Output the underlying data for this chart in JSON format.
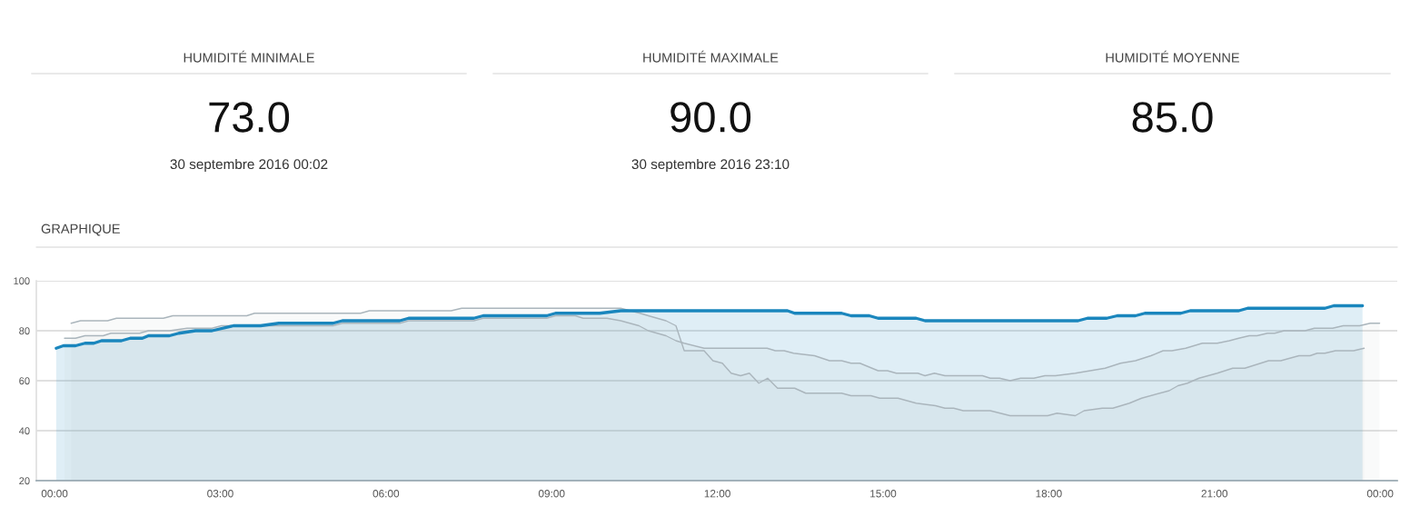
{
  "chart_data": [
    {
      "type": "other",
      "title": "HUMIDITÉ MINIMALE",
      "annotations": [
        "73.0",
        "30 septembre 2016 00:02"
      ]
    },
    {
      "type": "other",
      "title": "HUMIDITÉ MAXIMALE",
      "annotations": [
        "90.0",
        "30 septembre 2016 23:10"
      ]
    },
    {
      "type": "other",
      "title": "HUMIDITÉ MOYENNE",
      "annotations": [
        "85.0"
      ]
    },
    {
      "type": "area",
      "title": "GRAPHIQUE",
      "xlim": [
        -0.33,
        24.31
      ],
      "xticks": [
        {
          "value": 0,
          "label": "00:00"
        },
        {
          "value": 3,
          "label": "03:00"
        },
        {
          "value": 6,
          "label": "06:00"
        },
        {
          "value": 9,
          "label": "09:00"
        },
        {
          "value": 12,
          "label": "12:00"
        },
        {
          "value": 15,
          "label": "15:00"
        },
        {
          "value": 18,
          "label": "18:00"
        },
        {
          "value": 21,
          "label": "21:00"
        },
        {
          "value": 24,
          "label": "00:00"
        }
      ],
      "ylim": [
        20,
        100
      ],
      "yticks": [
        20,
        40,
        60,
        80,
        100
      ],
      "grid": "y",
      "series": [
        {
          "color": "#1a86bd",
          "x": [
            0.03,
            0.16,
            0.38,
            0.55,
            0.71,
            0.85,
            1.21,
            1.37,
            1.59,
            1.7,
            2.08,
            2.25,
            2.55,
            2.85,
            3.24,
            3.73,
            4.06,
            5.04,
            5.21,
            6.25,
            6.41,
            7.59,
            7.76,
            8.91,
            9.07,
            9.87,
            10.25,
            13.27,
            13.4,
            14.25,
            14.42,
            14.75,
            14.91,
            15.6,
            15.76,
            18.53,
            18.7,
            19.05,
            19.24,
            19.57,
            19.74,
            20.39,
            20.56,
            21.44,
            21.6,
            23.0,
            23.16,
            23.68
          ],
          "values": [
            73,
            74,
            74,
            75,
            75,
            76,
            76,
            77,
            77,
            78,
            78,
            79,
            80,
            80,
            82,
            82,
            83,
            83,
            84,
            84,
            85,
            85,
            86,
            86,
            87,
            87,
            88,
            88,
            87,
            87,
            86,
            86,
            85,
            85,
            84,
            84,
            85,
            85,
            86,
            86,
            87,
            87,
            88,
            88,
            89,
            89,
            90,
            90
          ]
        },
        {
          "color": "#aab5bc",
          "x": [
            0.3,
            0.47,
            0.96,
            1.12,
            1.97,
            2.14,
            3.48,
            3.62,
            5.54,
            5.7,
            7.18,
            7.37,
            10.25,
            10.6,
            10.75,
            11.07,
            11.25,
            11.4,
            11.76,
            11.92,
            12.09,
            12.25,
            12.42,
            12.58,
            12.75,
            12.91,
            13.09,
            13.4,
            13.6,
            14.25,
            14.42,
            14.78,
            14.94,
            15.27,
            15.6,
            15.95,
            16.12,
            16.28,
            16.45,
            16.94,
            17.3,
            17.98,
            18.15,
            18.48,
            18.64,
            18.97,
            19.16,
            19.46,
            19.68,
            20.18,
            20.34,
            20.51,
            20.72,
            21.05,
            21.33,
            21.55,
            21.98,
            22.2,
            22.53,
            22.73,
            22.86,
            23.0,
            23.19,
            23.52,
            23.71
          ],
          "values": [
            83,
            84,
            84,
            85,
            85,
            86,
            86,
            87,
            87,
            88,
            88,
            89,
            89,
            87,
            86,
            84,
            82,
            72,
            72,
            68,
            67,
            63,
            62,
            63,
            59,
            61,
            57,
            57,
            55,
            55,
            54,
            54,
            53,
            53,
            51,
            50,
            49,
            49,
            48,
            48,
            46,
            46,
            47,
            46,
            48,
            49,
            49,
            51,
            53,
            56,
            58,
            59,
            61,
            63,
            65,
            65,
            68,
            68,
            70,
            70,
            71,
            71,
            72,
            72,
            73
          ]
        },
        {
          "color": "#aab5bc",
          "x": [
            0.18,
            0.38,
            0.55,
            0.88,
            1.02,
            1.54,
            1.7,
            2.08,
            2.4,
            2.85,
            3.02,
            5.04,
            5.21,
            6.25,
            6.41,
            7.59,
            7.76,
            8.91,
            9.07,
            9.43,
            9.57,
            10.0,
            10.25,
            10.58,
            10.75,
            11.07,
            11.25,
            11.4,
            11.76,
            12.9,
            13.05,
            13.21,
            13.38,
            13.76,
            14.03,
            14.25,
            14.42,
            14.58,
            14.91,
            15.08,
            15.24,
            15.63,
            15.76,
            15.93,
            16.12,
            16.8,
            16.94,
            17.11,
            17.3,
            17.49,
            17.73,
            17.93,
            18.12,
            18.48,
            18.75,
            19.02,
            19.3,
            19.57,
            19.85,
            20.07,
            20.23,
            20.48,
            20.78,
            21.05,
            21.27,
            21.44,
            21.63,
            21.77,
            21.96,
            22.09,
            22.26,
            22.64,
            22.81,
            23.14,
            23.33,
            23.63,
            23.82,
            23.99
          ],
          "values": [
            77,
            77,
            78,
            78,
            79,
            79,
            80,
            80,
            81,
            81,
            82,
            82,
            83,
            83,
            84,
            84,
            85,
            85,
            86,
            86,
            85,
            85,
            84,
            82,
            80,
            78,
            76,
            75,
            73,
            73,
            72,
            72,
            71,
            70,
            68,
            68,
            67,
            67,
            64,
            64,
            63,
            63,
            62,
            63,
            62,
            62,
            61,
            61,
            60,
            61,
            61,
            62,
            62,
            63,
            64,
            65,
            67,
            68,
            70,
            72,
            72,
            73,
            75,
            75,
            76,
            77,
            78,
            78,
            79,
            79,
            80,
            80,
            81,
            81,
            82,
            82,
            83,
            83
          ]
        }
      ]
    }
  ]
}
